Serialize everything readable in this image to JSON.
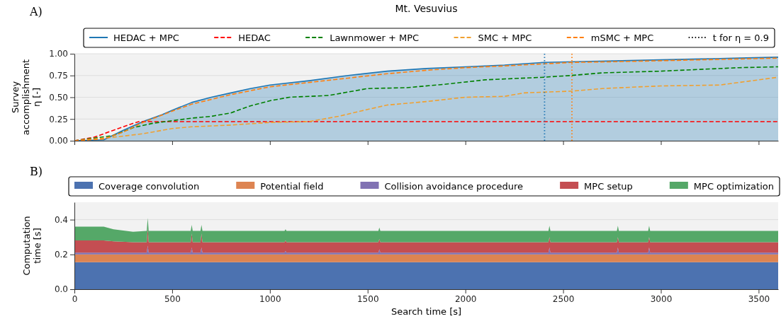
{
  "chart_data": [
    {
      "type": "line",
      "title": "Mt. Vesuvius",
      "ylabel": "Survey\naccomplishment\nη [-]",
      "annotations": [
        "A)",
        "t for η = 0.9"
      ],
      "xlim": [
        0,
        3600
      ],
      "xticks": [
        0,
        500,
        1000,
        1500,
        2000,
        2500,
        3000,
        3500
      ],
      "ylim": [
        0,
        1
      ],
      "yticks": [
        {
          "value": 0,
          "label": "0.00"
        },
        0.25,
        {
          "value": 0.5,
          "label": "0.50"
        },
        0.75,
        {
          "value": 1,
          "label": "1.00"
        }
      ],
      "tick_labels": "y",
      "grid": "y",
      "legend": "top",
      "series": [
        {
          "name": "HEDAC + MPC",
          "type": "area",
          "color": "#1f77b4",
          "line_style": "solid",
          "x": [
            0,
            150,
            250,
            350,
            450,
            500,
            600,
            700,
            800,
            900,
            1000,
            1200,
            1400,
            1600,
            1800,
            2000,
            2200,
            2400,
            2600,
            2800,
            3000,
            3200,
            3400,
            3600
          ],
          "values": [
            0,
            0.01,
            0.12,
            0.22,
            0.3,
            0.35,
            0.44,
            0.5,
            0.55,
            0.6,
            0.64,
            0.69,
            0.75,
            0.8,
            0.83,
            0.85,
            0.87,
            0.9,
            0.91,
            0.92,
            0.93,
            0.94,
            0.95,
            0.96
          ]
        },
        {
          "name": "HEDAC",
          "color": "#ff0000",
          "line_style": "dashed",
          "x": [
            0,
            100,
            200,
            300,
            330,
            3600
          ],
          "values": [
            0,
            0.04,
            0.12,
            0.2,
            0.22,
            0.22
          ]
        },
        {
          "name": "Lawnmower + MPC",
          "color": "#008000",
          "line_style": "dashed",
          "x": [
            0,
            200,
            300,
            400,
            500,
            600,
            700,
            800,
            900,
            1000,
            1100,
            1300,
            1500,
            1700,
            1900,
            2100,
            2400,
            2540,
            2700,
            3000,
            3200,
            3400,
            3600
          ],
          "values": [
            0,
            0.06,
            0.15,
            0.2,
            0.23,
            0.26,
            0.28,
            0.32,
            0.4,
            0.46,
            0.5,
            0.52,
            0.6,
            0.61,
            0.65,
            0.7,
            0.73,
            0.75,
            0.78,
            0.8,
            0.82,
            0.84,
            0.85
          ]
        },
        {
          "name": "SMC + MPC",
          "color": "#f0a030",
          "line_style": "dashed",
          "x": [
            0,
            200,
            350,
            500,
            600,
            800,
            1000,
            1200,
            1350,
            1500,
            1600,
            1800,
            2000,
            2200,
            2300,
            2540,
            2700,
            3000,
            3300,
            3500,
            3600
          ],
          "values": [
            0,
            0.04,
            0.08,
            0.14,
            0.16,
            0.18,
            0.21,
            0.22,
            0.28,
            0.36,
            0.41,
            0.45,
            0.5,
            0.51,
            0.55,
            0.57,
            0.6,
            0.63,
            0.64,
            0.7,
            0.73
          ]
        },
        {
          "name": "mSMC + MPC",
          "color": "#ff7f0e",
          "line_style": "dashed",
          "x": [
            0,
            150,
            250,
            350,
            500,
            600,
            800,
            1000,
            1200,
            1400,
            1600,
            1800,
            2000,
            2200,
            2540,
            2800,
            3000,
            3200,
            3400,
            3600
          ],
          "values": [
            0,
            0.02,
            0.1,
            0.21,
            0.34,
            0.42,
            0.53,
            0.62,
            0.67,
            0.72,
            0.77,
            0.81,
            0.84,
            0.86,
            0.9,
            0.91,
            0.92,
            0.93,
            0.94,
            0.95
          ]
        }
      ],
      "ref_lines": [
        {
          "axis": "x",
          "value": 2405,
          "color": "#1f77b4",
          "line_style": "dotted"
        },
        {
          "axis": "x",
          "value": 2545,
          "color": "#ff7f0e",
          "line_style": "dotted"
        }
      ]
    },
    {
      "type": "area",
      "stacked": true,
      "xlabel": "Search time [s]",
      "ylabel": "Computation\ntime [s]",
      "annotations": [
        "B)"
      ],
      "xlim": [
        0,
        3600
      ],
      "xticks": [
        0,
        500,
        1000,
        1500,
        2000,
        2500,
        3000,
        3500
      ],
      "ylim": [
        0,
        0.5
      ],
      "yticks": [
        {
          "value": 0,
          "label": "0.0"
        },
        0.2,
        0.4
      ],
      "grid": "y",
      "legend": "top",
      "x": [
        0,
        50,
        100,
        150,
        200,
        300,
        370,
        375,
        380,
        500,
        595,
        600,
        605,
        645,
        650,
        655,
        800,
        1000,
        1075,
        1080,
        1085,
        1300,
        1555,
        1560,
        1565,
        1800,
        2000,
        2200,
        2425,
        2430,
        2435,
        2600,
        2775,
        2780,
        2785,
        2935,
        2940,
        2945,
        3100,
        3300,
        3500,
        3600
      ],
      "series": [
        {
          "name": "Coverage convolution",
          "color": "#4c72b0",
          "values": [
            0.155,
            0.155,
            0.155,
            0.155,
            0.155,
            0.155,
            0.155,
            0.155,
            0.155,
            0.155,
            0.155,
            0.155,
            0.155,
            0.155,
            0.155,
            0.155,
            0.155,
            0.155,
            0.155,
            0.155,
            0.155,
            0.155,
            0.155,
            0.155,
            0.155,
            0.155,
            0.155,
            0.155,
            0.155,
            0.155,
            0.155,
            0.155,
            0.155,
            0.155,
            0.155,
            0.155,
            0.155,
            0.155,
            0.155,
            0.155,
            0.155,
            0.155
          ]
        },
        {
          "name": "Potential field",
          "color": "#dd8452",
          "values": [
            0.045,
            0.045,
            0.045,
            0.045,
            0.045,
            0.045,
            0.045,
            0.045,
            0.045,
            0.045,
            0.045,
            0.045,
            0.045,
            0.045,
            0.045,
            0.045,
            0.045,
            0.045,
            0.045,
            0.045,
            0.045,
            0.045,
            0.045,
            0.045,
            0.045,
            0.045,
            0.045,
            0.045,
            0.045,
            0.045,
            0.045,
            0.045,
            0.045,
            0.045,
            0.045,
            0.045,
            0.045,
            0.045,
            0.045,
            0.045,
            0.045,
            0.045
          ]
        },
        {
          "name": "Collision avoidance procedure",
          "color": "#8172b3",
          "values": [
            0.01,
            0.01,
            0.01,
            0.01,
            0.01,
            0.01,
            0.01,
            0.05,
            0.01,
            0.01,
            0.01,
            0.04,
            0.01,
            0.01,
            0.04,
            0.01,
            0.01,
            0.01,
            0.01,
            0.02,
            0.01,
            0.01,
            0.01,
            0.03,
            0.01,
            0.01,
            0.01,
            0.01,
            0.01,
            0.04,
            0.01,
            0.01,
            0.01,
            0.04,
            0.01,
            0.01,
            0.04,
            0.01,
            0.01,
            0.01,
            0.01,
            0.01
          ]
        },
        {
          "name": "MPC setup",
          "color": "#c44e52",
          "values": [
            0.07,
            0.07,
            0.07,
            0.07,
            0.065,
            0.06,
            0.06,
            0.1,
            0.06,
            0.06,
            0.06,
            0.08,
            0.06,
            0.06,
            0.08,
            0.06,
            0.06,
            0.06,
            0.06,
            0.06,
            0.06,
            0.06,
            0.06,
            0.06,
            0.06,
            0.06,
            0.06,
            0.06,
            0.06,
            0.06,
            0.06,
            0.06,
            0.06,
            0.06,
            0.06,
            0.06,
            0.06,
            0.06,
            0.06,
            0.06,
            0.06,
            0.06
          ]
        },
        {
          "name": "MPC optimization",
          "color": "#55a868",
          "values": [
            0.08,
            0.08,
            0.08,
            0.08,
            0.07,
            0.06,
            0.065,
            0.06,
            0.065,
            0.065,
            0.065,
            0.05,
            0.065,
            0.065,
            0.05,
            0.065,
            0.065,
            0.065,
            0.065,
            0.065,
            0.065,
            0.065,
            0.065,
            0.065,
            0.065,
            0.065,
            0.065,
            0.065,
            0.065,
            0.065,
            0.065,
            0.065,
            0.065,
            0.065,
            0.065,
            0.065,
            0.065,
            0.065,
            0.065,
            0.065,
            0.065,
            0.065
          ]
        }
      ]
    }
  ]
}
